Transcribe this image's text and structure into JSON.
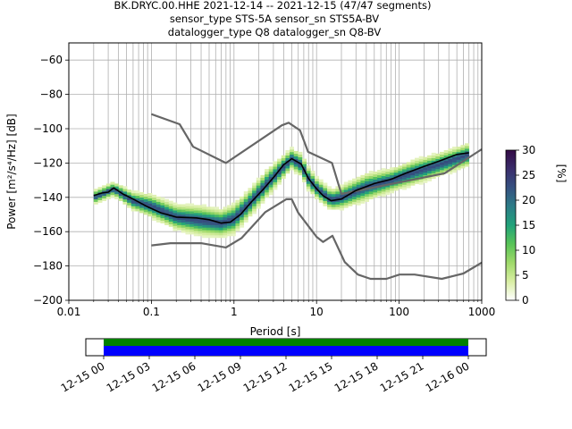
{
  "title_lines": [
    "BK.DRYC.00.HHE   2021-12-14 -- 2021-12-15  (47/47 segments)",
    "sensor_type STS-5A sensor_sn STS5A-BV",
    "datalogger_type Q8 datalogger_sn Q8-BV"
  ],
  "chart_data": {
    "type": "heatmap",
    "xlabel": "Period [s]",
    "ylabel": "Power [m²/s⁴/Hz] [dB]",
    "xscale": "log",
    "xlim": [
      0.01,
      1000
    ],
    "ylim": [
      -200,
      -50
    ],
    "x_ticks": [
      {
        "value": 0.01,
        "label": "0.01"
      },
      {
        "value": 0.1,
        "label": "0.1"
      },
      {
        "value": 1,
        "label": "1"
      },
      {
        "value": 10,
        "label": "10"
      },
      {
        "value": 100,
        "label": "100"
      },
      {
        "value": 1000,
        "label": "1000"
      }
    ],
    "y_ticks": [
      {
        "value": -60,
        "label": "−60"
      },
      {
        "value": -80,
        "label": "−80"
      },
      {
        "value": -100,
        "label": "−100"
      },
      {
        "value": -120,
        "label": "−120"
      },
      {
        "value": -140,
        "label": "−140"
      },
      {
        "value": -160,
        "label": "−160"
      },
      {
        "value": -180,
        "label": "−180"
      },
      {
        "value": -200,
        "label": "−200"
      }
    ],
    "grid": true,
    "series": [
      {
        "role": "new_high_noise_model",
        "color": "#666666",
        "points": [
          [
            0.1,
            -91.5
          ],
          [
            0.22,
            -97.4
          ],
          [
            0.32,
            -110.5
          ],
          [
            0.8,
            -120
          ],
          [
            3.8,
            -98
          ],
          [
            4.6,
            -96.5
          ],
          [
            6.3,
            -101
          ],
          [
            7.9,
            -113.5
          ],
          [
            15.4,
            -120
          ],
          [
            20,
            -138
          ],
          [
            354.8,
            -126
          ],
          [
            1000,
            -112
          ]
        ]
      },
      {
        "role": "new_low_noise_model",
        "color": "#666666",
        "points": [
          [
            0.1,
            -168
          ],
          [
            0.17,
            -166.7
          ],
          [
            0.4,
            -166.7
          ],
          [
            0.8,
            -169.2
          ],
          [
            1.24,
            -163.7
          ],
          [
            2.4,
            -148.6
          ],
          [
            4.3,
            -141.1
          ],
          [
            5,
            -141.1
          ],
          [
            6,
            -149
          ],
          [
            10,
            -163
          ],
          [
            12,
            -166
          ],
          [
            15.6,
            -162.4
          ],
          [
            21.9,
            -177.7
          ],
          [
            31.6,
            -185
          ],
          [
            45,
            -187.5
          ],
          [
            70,
            -187.5
          ],
          [
            101,
            -185
          ],
          [
            154,
            -185
          ],
          [
            328,
            -187.5
          ],
          [
            600,
            -184.4
          ],
          [
            1000,
            -178
          ]
        ]
      },
      {
        "role": "mean_psd",
        "color": "#000000",
        "points": [
          [
            0.02,
            -139
          ],
          [
            0.025,
            -137.5
          ],
          [
            0.03,
            -137
          ],
          [
            0.035,
            -134.5
          ],
          [
            0.045,
            -138
          ],
          [
            0.06,
            -141
          ],
          [
            0.09,
            -145.5
          ],
          [
            0.13,
            -149
          ],
          [
            0.2,
            -151.5
          ],
          [
            0.35,
            -152
          ],
          [
            0.5,
            -153
          ],
          [
            0.7,
            -155
          ],
          [
            0.9,
            -154.5
          ],
          [
            1.2,
            -150
          ],
          [
            1.6,
            -143
          ],
          [
            2.2,
            -136
          ],
          [
            3,
            -128.5
          ],
          [
            4,
            -121
          ],
          [
            5,
            -117.5
          ],
          [
            6.5,
            -120.5
          ],
          [
            8,
            -129
          ],
          [
            10,
            -135
          ],
          [
            12,
            -139
          ],
          [
            15,
            -142
          ],
          [
            20,
            -141
          ],
          [
            30,
            -136
          ],
          [
            50,
            -132
          ],
          [
            80,
            -129.5
          ],
          [
            120,
            -126
          ],
          [
            200,
            -122
          ],
          [
            300,
            -119
          ],
          [
            500,
            -115
          ],
          [
            700,
            -114
          ]
        ]
      }
    ],
    "density_band": [
      [
        0.02,
        -143,
        -137
      ],
      [
        0.035,
        -138,
        -132
      ],
      [
        0.06,
        -146,
        -138
      ],
      [
        0.1,
        -150,
        -140
      ],
      [
        0.2,
        -157,
        -146
      ],
      [
        0.4,
        -160,
        -147
      ],
      [
        0.7,
        -161,
        -149
      ],
      [
        1,
        -159,
        -146
      ],
      [
        1.5,
        -150,
        -138
      ],
      [
        2.5,
        -138,
        -126
      ],
      [
        4,
        -127,
        -117
      ],
      [
        5,
        -122,
        -113
      ],
      [
        6.5,
        -126,
        -116
      ],
      [
        8,
        -134,
        -124
      ],
      [
        10,
        -139,
        -130
      ],
      [
        15,
        -146,
        -137
      ],
      [
        20,
        -145,
        -135
      ],
      [
        40,
        -140,
        -128
      ],
      [
        80,
        -135,
        -125
      ],
      [
        150,
        -131,
        -120
      ],
      [
        300,
        -126,
        -116
      ],
      [
        700,
        -120,
        -110
      ]
    ],
    "colorbar": {
      "label": "[%]",
      "min": 0,
      "max": 30,
      "ticks": [
        {
          "value": 0,
          "label": "0"
        },
        {
          "value": 5,
          "label": "5"
        },
        {
          "value": 10,
          "label": "10"
        },
        {
          "value": 15,
          "label": "15"
        },
        {
          "value": 20,
          "label": "20"
        },
        {
          "value": 25,
          "label": "25"
        },
        {
          "value": 30,
          "label": "30"
        }
      ],
      "stops": [
        "#ffffff",
        "#d9eea3",
        "#9fd96a",
        "#58c357",
        "#21a27a",
        "#2c7c87",
        "#355180",
        "#3a2d6b",
        "#330a45"
      ]
    }
  },
  "coverage": {
    "bands": [
      {
        "role": "data_available",
        "color": "#008000"
      },
      {
        "role": "gapless",
        "color": "#0000ff"
      }
    ],
    "ticks": [
      "12-15 00",
      "12-15 03",
      "12-15 06",
      "12-15 09",
      "12-15 12",
      "12-15 15",
      "12-15 18",
      "12-15 21",
      "12-16 00"
    ]
  }
}
